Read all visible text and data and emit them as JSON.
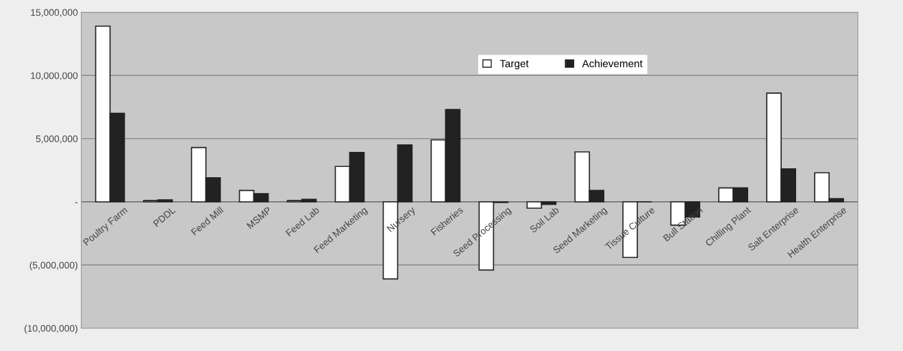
{
  "chart_data": {
    "type": "bar",
    "categories": [
      "Poultry Farm",
      "PDDL",
      "Feed Mill",
      "MSMP",
      "Feed Lab",
      "Feed Marketing",
      "Nursery",
      "Fisheries",
      "Seed Processing",
      "Soil Lab",
      "Seed Marketing",
      "Tissue Culture",
      "Bull Station",
      "Chilling Plant",
      "Salt Enterprise",
      "Health Enterprise"
    ],
    "series": [
      {
        "name": "Target",
        "color": "#ffffff",
        "values": [
          13900000,
          100000,
          4300000,
          900000,
          100000,
          2800000,
          -6100000,
          4900000,
          -5400000,
          -500000,
          3950000,
          -4400000,
          -1850000,
          1100000,
          8600000,
          2300000
        ]
      },
      {
        "name": "Achievement",
        "color": "#222222",
        "values": [
          7000000,
          150000,
          1900000,
          650000,
          200000,
          3900000,
          4500000,
          7300000,
          -50000,
          -200000,
          900000,
          0,
          -1200000,
          1100000,
          2600000,
          250000
        ]
      }
    ],
    "ylim": [
      -10000000,
      15000000
    ],
    "yticks": [
      {
        "value": -10000000,
        "label": "(10,000,000)"
      },
      {
        "value": -5000000,
        "label": "(5,000,000)"
      },
      {
        "value": 0,
        "label": "-"
      },
      {
        "value": 5000000,
        "label": "5,000,000"
      },
      {
        "value": 10000000,
        "label": "10,000,000"
      },
      {
        "value": 15000000,
        "label": "15,000,000"
      }
    ],
    "grid": "y",
    "legend": "top"
  }
}
